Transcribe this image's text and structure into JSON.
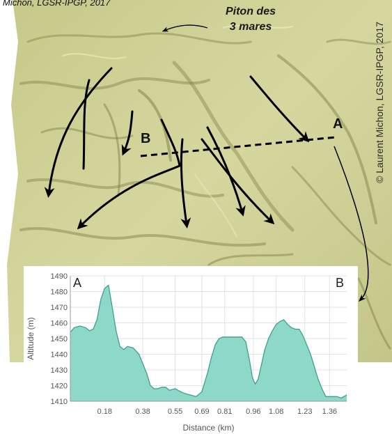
{
  "credit_text": "Michon, LGSR-IPGP, 2017",
  "peak_label": {
    "line1": "Piton des",
    "line2": "3 mares"
  },
  "copyright": "© Laurent Michon, LGSR-IPGP, 2017",
  "point_labels": {
    "a_map": "A",
    "b_map": "B"
  },
  "colors": {
    "terrain": "#cdcf94",
    "profile_fill": "#8ed8c8",
    "profile_line": "#3f9f93",
    "arrow": "#000000"
  },
  "chart_data": {
    "type": "area",
    "ylabel": "Altitude (m)",
    "xlabel": "Distance (km)",
    "ylim": [
      1410,
      1490
    ],
    "xlim": [
      0,
      1.45
    ],
    "yticks": [
      1410,
      1420,
      1430,
      1440,
      1450,
      1460,
      1470,
      1480,
      1490
    ],
    "xticks": [
      "0.18",
      "0.38",
      "0.55",
      "0.69",
      "0.81",
      "0.96",
      "1.08",
      "1.23",
      "1.36"
    ],
    "xtick_values": [
      0.18,
      0.38,
      0.55,
      0.69,
      0.81,
      0.96,
      1.08,
      1.23,
      1.36
    ],
    "start_label": "A",
    "end_label": "B",
    "x": [
      0,
      0.02,
      0.05,
      0.08,
      0.1,
      0.12,
      0.14,
      0.16,
      0.18,
      0.2,
      0.22,
      0.24,
      0.26,
      0.28,
      0.3,
      0.33,
      0.36,
      0.38,
      0.4,
      0.42,
      0.44,
      0.46,
      0.48,
      0.5,
      0.52,
      0.55,
      0.58,
      0.6,
      0.63,
      0.66,
      0.69,
      0.72,
      0.74,
      0.76,
      0.78,
      0.8,
      0.82,
      0.84,
      0.86,
      0.88,
      0.9,
      0.92,
      0.94,
      0.955,
      0.97,
      0.985,
      1.0,
      1.02,
      1.04,
      1.06,
      1.08,
      1.1,
      1.12,
      1.14,
      1.16,
      1.18,
      1.2,
      1.22,
      1.24,
      1.26,
      1.28,
      1.3,
      1.32,
      1.34,
      1.36,
      1.38,
      1.4,
      1.42,
      1.45
    ],
    "values": [
      1454,
      1457,
      1458,
      1457,
      1455,
      1456,
      1462,
      1475,
      1482,
      1484,
      1470,
      1455,
      1445,
      1443,
      1445,
      1444,
      1440,
      1434,
      1428,
      1420,
      1418,
      1418,
      1419,
      1419,
      1417,
      1418,
      1416,
      1415,
      1414,
      1413,
      1416,
      1428,
      1438,
      1446,
      1450,
      1451,
      1451,
      1451,
      1451,
      1451,
      1451,
      1448,
      1436,
      1425,
      1421,
      1424,
      1432,
      1443,
      1450,
      1455,
      1459,
      1461,
      1462,
      1459,
      1457,
      1456,
      1456,
      1452,
      1446,
      1440,
      1432,
      1424,
      1418,
      1413,
      1413,
      1413,
      1413,
      1412,
      1414
    ]
  }
}
